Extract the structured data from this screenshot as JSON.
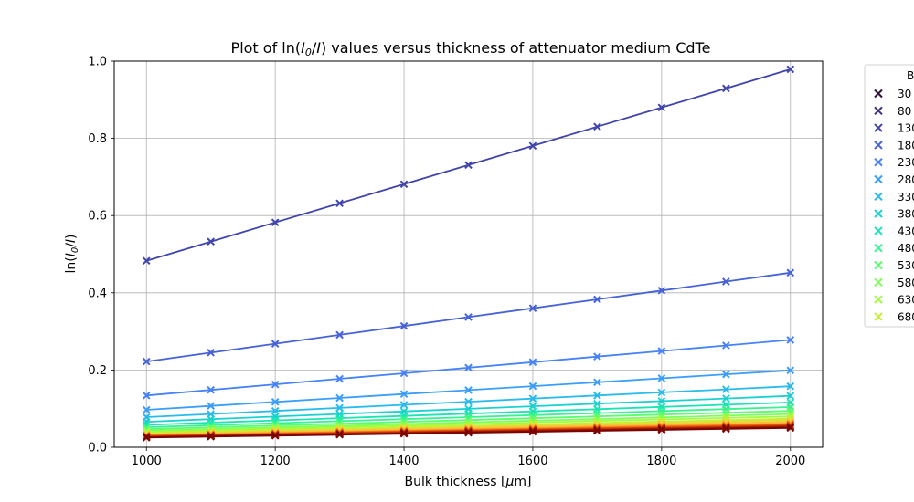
{
  "chart_data": {
    "type": "line",
    "title_parts": [
      "Plot of ln(",
      "I",
      "0",
      "/",
      "I",
      ") values versus thickness of attenuator medium CdTe"
    ],
    "xlabel_parts": [
      "Bulk thickness [",
      "μ",
      "m]"
    ],
    "ylabel_parts": [
      "ln(",
      "I",
      "0",
      "/",
      "I",
      ")"
    ],
    "xlim": [
      950,
      2050
    ],
    "ylim": [
      0,
      1.0
    ],
    "x_ticks": [
      "1000",
      "1200",
      "1400",
      "1600",
      "1800",
      "2000"
    ],
    "y_ticks": [
      "0.0",
      "0.2",
      "0.4",
      "0.6",
      "0.8",
      "1.0"
    ],
    "grid": true,
    "x": [
      1000,
      1100,
      1200,
      1300,
      1400,
      1500,
      1600,
      1700,
      1800,
      1900,
      2000
    ],
    "legend_title": "B",
    "legend_placement": "outside-right",
    "legend_entries": [
      "30",
      "80",
      "130",
      "180",
      "230",
      "280",
      "330",
      "380",
      "430",
      "480",
      "530",
      "580",
      "630",
      "680"
    ],
    "series": [
      {
        "name": "30",
        "color": "#30123b",
        "slope": 0.0,
        "y1000": 0.0,
        "show_line": false
      },
      {
        "name": "80",
        "color": "#3b2f7f",
        "slope": 0.0,
        "y1000": 0.0,
        "show_line": false
      },
      {
        "name": "130",
        "color": "#4145ab",
        "slope": 0.000496,
        "y1000": 0.483,
        "show_line": true
      },
      {
        "name": "180",
        "color": "#4662d7",
        "slope": 0.00023,
        "y1000": 0.222,
        "show_line": true
      },
      {
        "name": "230",
        "color": "#4682f8",
        "slope": 0.000144,
        "y1000": 0.134,
        "show_line": true
      },
      {
        "name": "280",
        "color": "#3a9efa",
        "slope": 0.000102,
        "y1000": 0.097,
        "show_line": true
      },
      {
        "name": "330",
        "color": "#28bbec",
        "slope": 8e-05,
        "y1000": 0.078,
        "show_line": true
      },
      {
        "name": "380",
        "color": "#1ad1d2",
        "slope": 6.7e-05,
        "y1000": 0.066,
        "show_line": true
      },
      {
        "name": "430",
        "color": "#1ae4b6",
        "slope": 5.8e-05,
        "y1000": 0.058,
        "show_line": true
      },
      {
        "name": "480",
        "color": "#35f393",
        "slope": 5.2e-05,
        "y1000": 0.052,
        "show_line": true
      },
      {
        "name": "530",
        "color": "#5afc70",
        "slope": 4.7e-05,
        "y1000": 0.047,
        "show_line": true
      },
      {
        "name": "580",
        "color": "#7efe5c",
        "slope": 4.3e-05,
        "y1000": 0.043,
        "show_line": true
      },
      {
        "name": "630",
        "color": "#a2fc3c",
        "slope": 4e-05,
        "y1000": 0.04,
        "show_line": true
      },
      {
        "name": "680",
        "color": "#c5ef33",
        "slope": 3.7e-05,
        "y1000": 0.037,
        "show_line": true
      },
      {
        "name": "",
        "color": "#e1dd37",
        "slope": 3.5e-05,
        "y1000": 0.035,
        "show_line": true
      },
      {
        "name": "",
        "color": "#f6c33a",
        "slope": 3.3e-05,
        "y1000": 0.033,
        "show_line": true
      },
      {
        "name": "",
        "color": "#fea331",
        "slope": 3.1e-05,
        "y1000": 0.031,
        "show_line": true
      },
      {
        "name": "",
        "color": "#f97d20",
        "slope": 3e-05,
        "y1000": 0.03,
        "show_line": true
      },
      {
        "name": "",
        "color": "#ea5a0c",
        "slope": 2.9e-05,
        "y1000": 0.029,
        "show_line": true
      },
      {
        "name": "",
        "color": "#d23d05",
        "slope": 2.8e-05,
        "y1000": 0.028,
        "show_line": true
      },
      {
        "name": "",
        "color": "#b12602",
        "slope": 2.7e-05,
        "y1000": 0.027,
        "show_line": true
      },
      {
        "name": "",
        "color": "#8c1002",
        "slope": 2.6e-05,
        "y1000": 0.026,
        "show_line": true
      },
      {
        "name": "",
        "color": "#7a0403",
        "slope": 2.5e-05,
        "y1000": 0.025,
        "show_line": true
      }
    ]
  }
}
